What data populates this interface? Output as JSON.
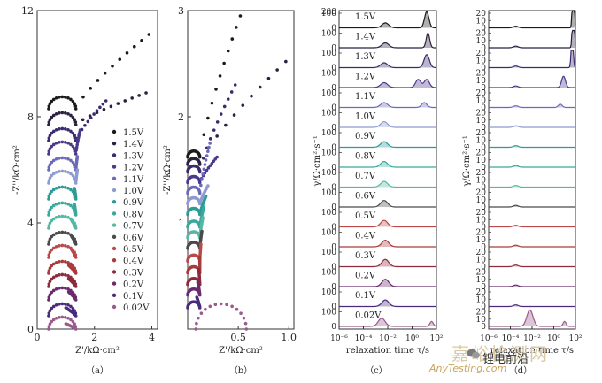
{
  "colors": {
    "voltages": [
      "#1a1a1a",
      "#2b2140",
      "#3b2a6e",
      "#4b3a8c",
      "#6c6ab8",
      "#8e9bd0",
      "#2e9a96",
      "#3aa89c",
      "#56b8a4",
      "#4a4a4a",
      "#b94a48",
      "#a83c3c",
      "#8c2b3c",
      "#6b2a6e",
      "#4a2a7a",
      "#9b5a8c"
    ],
    "axis": "#333333"
  },
  "chart_data": [
    {
      "id": "a",
      "type": "scatter",
      "panel_label": "（a）",
      "xlabel": "Z'/kΩ·cm²",
      "ylabel": "-Z''/kΩ·cm²",
      "xlim": [
        0,
        4.2
      ],
      "ylim": [
        0,
        12
      ],
      "xticks": [
        "0",
        "2",
        "4"
      ],
      "xtick_values": [
        0,
        2,
        4
      ],
      "yticks": [
        "0",
        "4",
        "8",
        "12"
      ],
      "ytick_values": [
        0,
        4,
        8,
        12
      ],
      "legend": [
        "1.5V",
        "1.4V",
        "1.3V",
        "1.2V",
        "1.1V",
        "1.0V",
        "0.9V",
        "0.8V",
        "0.7V",
        "0.6V",
        "0.5V",
        "0.4V",
        "0.3V",
        "0.2V",
        "0.1V",
        "0.02V"
      ],
      "legend_position": "right",
      "offsets": [
        8.3,
        7.7,
        7.1,
        6.6,
        6.0,
        5.5,
        4.9,
        4.3,
        3.8,
        3.2,
        2.7,
        2.1,
        1.6,
        1.1,
        0.5,
        0.0
      ],
      "arc_diameter": 0.95,
      "arc_start": 0.4,
      "tail_end_x": [
        3.9,
        3.8,
        2.4,
        1.5,
        1.4,
        1.4,
        1.3,
        1.3,
        1.2,
        1.2,
        1.2,
        1.1,
        1.1,
        1.1,
        1.0,
        1.0
      ],
      "tail_end_y": [
        11.1,
        8.9,
        8.6,
        7.5,
        6.5,
        6.0,
        5.3,
        4.7,
        4.1,
        3.5,
        3.0,
        2.4,
        1.9,
        1.4,
        0.8,
        0.2
      ]
    },
    {
      "id": "b",
      "type": "scatter",
      "panel_label": "（b）",
      "xlabel": "Z'/kΩ·cm²",
      "ylabel": "-Z''/kΩ·cm²",
      "xlim": [
        0,
        1.05
      ],
      "ylim": [
        0,
        3
      ],
      "xticks": [
        "0.5",
        "1.0"
      ],
      "xtick_values": [
        0.5,
        1.0
      ],
      "yticks": [
        "1",
        "2",
        "3"
      ],
      "ytick_values": [
        1,
        2,
        3
      ],
      "offsets": [
        1.62,
        1.55,
        1.48,
        1.38,
        1.28,
        1.18,
        1.08,
        0.96,
        0.86,
        0.76,
        0.64,
        0.53,
        0.42,
        0.32,
        0.2,
        0.0
      ],
      "tail_end_x": [
        0.52,
        0.97,
        0.47,
        0.29,
        0.22,
        0.2,
        0.18,
        0.16,
        0.15,
        0.14,
        0.13,
        0.12,
        0.11,
        0.1,
        0.09,
        0.58
      ],
      "tail_end_y": [
        2.95,
        2.52,
        2.3,
        1.62,
        1.75,
        1.35,
        1.25,
        1.15,
        1.05,
        0.92,
        0.8,
        0.68,
        0.56,
        0.44,
        0.3,
        0.05
      ]
    },
    {
      "id": "c",
      "type": "line",
      "panel_label": "（c）",
      "xlabel": "relaxation time τ/s",
      "ylabel": "γ/Ω·cm²·s⁻¹",
      "xlim": [
        -6,
        2
      ],
      "xticks": [
        "10⁻⁶",
        "10⁻⁴",
        "10⁻²",
        "10⁰",
        "10²"
      ],
      "xtick_values": [
        -6,
        -4,
        -2,
        0,
        2
      ],
      "ytick_values": [
        0,
        100
      ],
      "ytick_labels": [
        "0",
        "100"
      ],
      "top_tick": "200",
      "rows": [
        "1.5V",
        "1.4V",
        "1.3V",
        "1.2V",
        "1.1V",
        "1.0V",
        "0.9V",
        "0.8V",
        "0.7V",
        "0.6V",
        "0.5V",
        "0.4V",
        "0.3V",
        "0.2V",
        "0.1V",
        "0.02V"
      ],
      "peaks": [
        [
          {
            "x": -2.2,
            "h": 0.3,
            "w": 0.4
          },
          {
            "x": 1.2,
            "h": 1.0,
            "w": 0.25
          }
        ],
        [
          {
            "x": -2.2,
            "h": 0.3,
            "w": 0.4
          },
          {
            "x": 1.3,
            "h": 0.9,
            "w": 0.2
          }
        ],
        [
          {
            "x": -2.3,
            "h": 0.3,
            "w": 0.4
          },
          {
            "x": 1.2,
            "h": 0.8,
            "w": 0.3
          }
        ],
        [
          {
            "x": -2.3,
            "h": 0.3,
            "w": 0.4
          },
          {
            "x": 0.5,
            "h": 0.5,
            "w": 0.3
          },
          {
            "x": 1.2,
            "h": 0.5,
            "w": 0.3
          }
        ],
        [
          {
            "x": -2.3,
            "h": 0.3,
            "w": 0.4
          },
          {
            "x": 1.0,
            "h": 0.3,
            "w": 0.3
          }
        ],
        [
          {
            "x": -2.3,
            "h": 0.35,
            "w": 0.4
          }
        ],
        [
          {
            "x": -2.3,
            "h": 0.35,
            "w": 0.4
          }
        ],
        [
          {
            "x": -2.3,
            "h": 0.35,
            "w": 0.4
          }
        ],
        [
          {
            "x": -2.3,
            "h": 0.35,
            "w": 0.4
          }
        ],
        [
          {
            "x": -2.3,
            "h": 0.4,
            "w": 0.4
          }
        ],
        [
          {
            "x": -2.3,
            "h": 0.4,
            "w": 0.4
          }
        ],
        [
          {
            "x": -2.2,
            "h": 0.4,
            "w": 0.4
          }
        ],
        [
          {
            "x": -2.2,
            "h": 0.45,
            "w": 0.4
          }
        ],
        [
          {
            "x": -2.2,
            "h": 0.45,
            "w": 0.4
          }
        ],
        [
          {
            "x": -2.2,
            "h": 0.4,
            "w": 0.4
          }
        ],
        [
          {
            "x": -2.5,
            "h": 0.5,
            "w": 0.4
          },
          {
            "x": 1.6,
            "h": 0.3,
            "w": 0.2
          }
        ]
      ]
    },
    {
      "id": "d",
      "type": "line",
      "panel_label": "（d）",
      "xlabel": "relaxation time τ/s",
      "ylabel": "γ/Ω·cm²·s⁻¹",
      "xlim": [
        -6,
        2
      ],
      "xticks": [
        "10⁻⁶",
        "10⁻⁴",
        "10⁻²",
        "10⁰",
        "10²"
      ],
      "xtick_values": [
        -6,
        -4,
        -2,
        0,
        2
      ],
      "ytick_values": [
        0,
        10,
        20
      ],
      "ytick_labels": [
        "0",
        "10",
        "20"
      ],
      "rows": [
        "1.5V",
        "1.4V",
        "1.3V",
        "1.2V",
        "1.1V",
        "1.0V",
        "0.9V",
        "0.8V",
        "0.7V",
        "0.6V",
        "0.5V",
        "0.4V",
        "0.3V",
        "0.2V",
        "0.1V",
        "0.02V"
      ],
      "peaks": [
        [
          {
            "x": -3.5,
            "h": 0.1,
            "w": 0.3
          },
          {
            "x": 1.8,
            "h": 3.0,
            "w": 0.12
          }
        ],
        [
          {
            "x": -3.5,
            "h": 0.1,
            "w": 0.3
          },
          {
            "x": 1.8,
            "h": 3.0,
            "w": 0.12
          }
        ],
        [
          {
            "x": -3.5,
            "h": 0.1,
            "w": 0.3
          },
          {
            "x": 1.7,
            "h": 2.5,
            "w": 0.12
          }
        ],
        [
          {
            "x": -3.5,
            "h": 0.1,
            "w": 0.3
          },
          {
            "x": 0.9,
            "h": 0.7,
            "w": 0.25
          }
        ],
        [
          {
            "x": -3.5,
            "h": 0.1,
            "w": 0.3
          },
          {
            "x": 0.6,
            "h": 0.2,
            "w": 0.25
          }
        ],
        [
          {
            "x": -3.5,
            "h": 0.1,
            "w": 0.3
          }
        ],
        [
          {
            "x": -3.5,
            "h": 0.1,
            "w": 0.3
          }
        ],
        [
          {
            "x": -3.5,
            "h": 0.1,
            "w": 0.3
          }
        ],
        [
          {
            "x": -3.5,
            "h": 0.1,
            "w": 0.3
          }
        ],
        [
          {
            "x": -3.5,
            "h": 0.1,
            "w": 0.3
          }
        ],
        [
          {
            "x": -3.5,
            "h": 0.1,
            "w": 0.3
          }
        ],
        [
          {
            "x": -3.5,
            "h": 0.1,
            "w": 0.3
          }
        ],
        [
          {
            "x": -3.5,
            "h": 0.1,
            "w": 0.3
          }
        ],
        [
          {
            "x": -3.5,
            "h": 0.1,
            "w": 0.3
          }
        ],
        [
          {
            "x": -3.5,
            "h": 0.1,
            "w": 0.3
          }
        ],
        [
          {
            "x": -2.2,
            "h": 1.0,
            "w": 0.4
          },
          {
            "x": 1.0,
            "h": 0.3,
            "w": 0.2
          }
        ]
      ]
    }
  ],
  "watermark": {
    "site": "嘉峪检测网",
    "brand": "锂电前沿",
    "url": "AnyTesting.com"
  }
}
